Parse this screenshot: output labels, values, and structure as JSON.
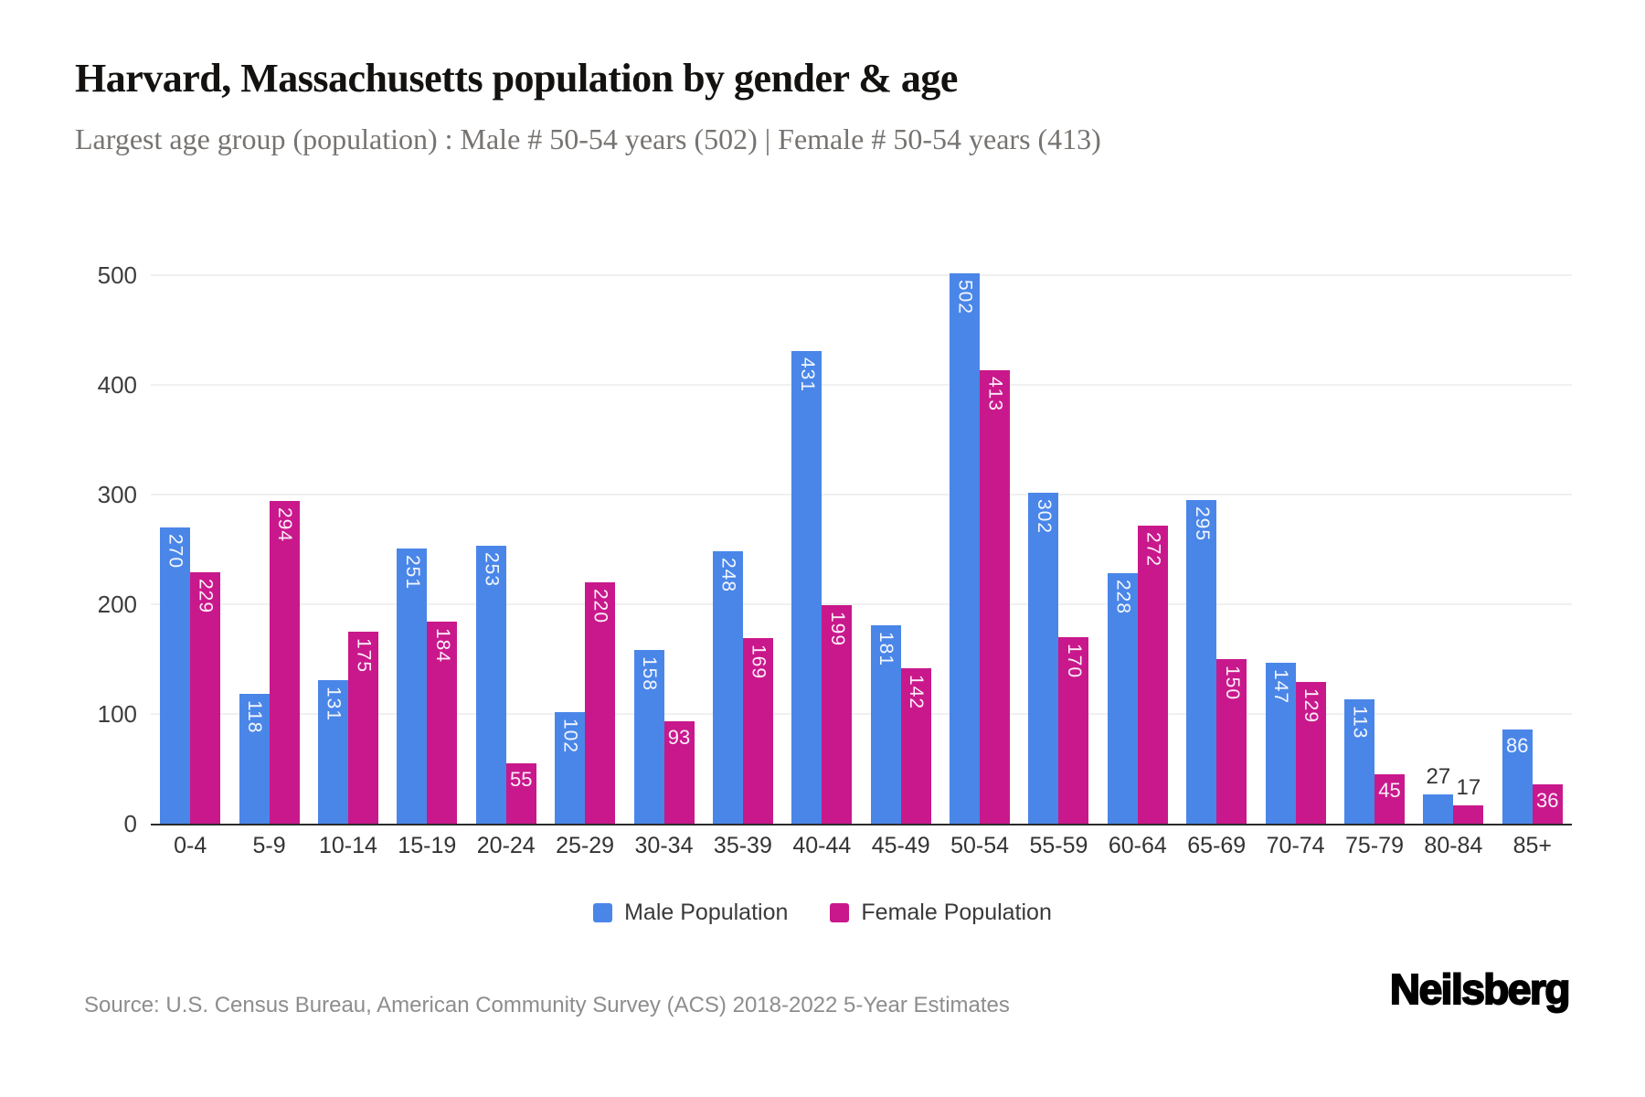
{
  "header": {
    "title": "Harvard, Massachusetts population by gender & age",
    "subtitle": "Largest age group (population) : Male # 50-54 years (502) | Female # 50-54 years (413)"
  },
  "chart_data": {
    "type": "bar",
    "title": "Harvard, Massachusetts population by gender & age",
    "categories": [
      "0-4",
      "5-9",
      "10-14",
      "15-19",
      "20-24",
      "25-29",
      "30-34",
      "35-39",
      "40-44",
      "45-49",
      "50-54",
      "55-59",
      "60-64",
      "65-69",
      "70-74",
      "75-79",
      "80-84",
      "85+"
    ],
    "series": [
      {
        "name": "Male Population",
        "color": "#4a86e8",
        "values": [
          270,
          118,
          131,
          251,
          253,
          102,
          158,
          248,
          431,
          181,
          502,
          302,
          228,
          295,
          147,
          113,
          27,
          86
        ]
      },
      {
        "name": "Female Population",
        "color": "#c9188c",
        "values": [
          229,
          294,
          175,
          184,
          55,
          220,
          93,
          169,
          199,
          142,
          413,
          170,
          272,
          150,
          129,
          45,
          17,
          36
        ]
      }
    ],
    "xlabel": "",
    "ylabel": "",
    "ylim": [
      0,
      500
    ],
    "yticks": [
      0,
      100,
      200,
      300,
      400,
      500
    ],
    "grid": true,
    "legend_position": "bottom",
    "value_labels": true
  },
  "footer": {
    "source": "Source: U.S. Census Bureau, American Community Survey (ACS) 2018-2022 5-Year Estimates",
    "brand": "Neilsberg"
  }
}
